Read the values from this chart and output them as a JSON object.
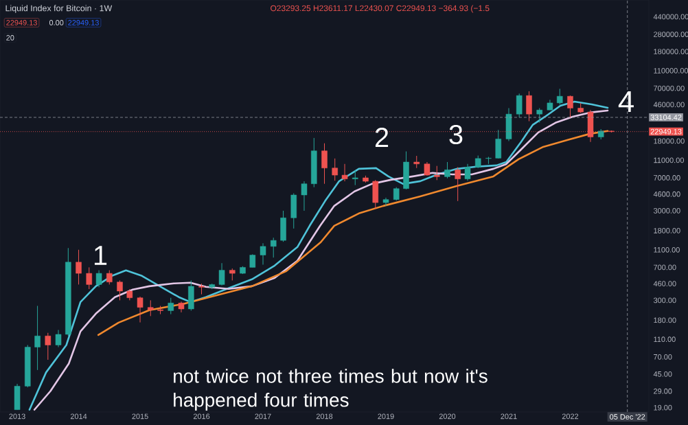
{
  "chart_data": {
    "type": "candlestick",
    "title": "Liquid Index for Bitcoin · 1W",
    "subtitle": "O23293.25 H23611.17 L22430.07 C22949.13 −364.93 (−1.5",
    "log": "y",
    "xlim": [
      2012.72,
      2023.28
    ],
    "ylim": [
      17,
      677000
    ],
    "xticks": [
      2013,
      2014,
      2015,
      2016,
      2017,
      2018,
      2019,
      2020,
      2021,
      2022
    ],
    "yticks": [
      {
        "value": 19,
        "label": "19.00"
      },
      {
        "value": 29,
        "label": "29.00"
      },
      {
        "value": 45,
        "label": "45.00"
      },
      {
        "value": 70,
        "label": "70.00"
      },
      {
        "value": 110,
        "label": "110.00"
      },
      {
        "value": 180,
        "label": "180.00"
      },
      {
        "value": 300,
        "label": "300.00"
      },
      {
        "value": 460,
        "label": "460.00"
      },
      {
        "value": 700,
        "label": "700.00"
      },
      {
        "value": 1100,
        "label": "1100.00"
      },
      {
        "value": 1800,
        "label": "1800.00"
      },
      {
        "value": 3000,
        "label": "3000.00"
      },
      {
        "value": 4600,
        "label": "4600.00"
      },
      {
        "value": 7000,
        "label": "7000.00"
      },
      {
        "value": 11000,
        "label": "11000.00"
      },
      {
        "value": 18000,
        "label": "18000.00"
      },
      {
        "value": 46000,
        "label": "46000.00"
      },
      {
        "value": 70000,
        "label": "70000.00"
      },
      {
        "value": 110000,
        "label": "110000.00"
      },
      {
        "value": 180000,
        "label": "180000.00"
      },
      {
        "value": 280000,
        "label": "280000.00"
      },
      {
        "value": 440000,
        "label": "440000.00"
      }
    ],
    "x": [
      2013.0,
      2013.17,
      2013.33,
      2013.5,
      2013.67,
      2013.83,
      2014.0,
      2014.17,
      2014.33,
      2014.5,
      2014.67,
      2014.83,
      2015.0,
      2015.17,
      2015.33,
      2015.5,
      2015.67,
      2015.83,
      2016.0,
      2016.17,
      2016.33,
      2016.5,
      2016.67,
      2016.83,
      2017.0,
      2017.17,
      2017.33,
      2017.5,
      2017.67,
      2017.83,
      2018.0,
      2018.17,
      2018.33,
      2018.5,
      2018.67,
      2018.83,
      2019.0,
      2019.17,
      2019.33,
      2019.5,
      2019.67,
      2019.83,
      2020.0,
      2020.17,
      2020.33,
      2020.5,
      2020.67,
      2020.83,
      2021.0,
      2021.17,
      2021.33,
      2021.5,
      2021.67,
      2021.83,
      2022.0,
      2022.17,
      2022.33,
      2022.5,
      2022.67
    ],
    "ohlc": [
      [
        18,
        35,
        18,
        33
      ],
      [
        33,
        95,
        32,
        90
      ],
      [
        90,
        260,
        50,
        120
      ],
      [
        120,
        130,
        65,
        95
      ],
      [
        95,
        140,
        90,
        125
      ],
      [
        125,
        1150,
        120,
        800
      ],
      [
        800,
        1100,
        450,
        600
      ],
      [
        600,
        700,
        400,
        450
      ],
      [
        450,
        650,
        420,
        600
      ],
      [
        600,
        650,
        450,
        480
      ],
      [
        480,
        500,
        300,
        380
      ],
      [
        380,
        400,
        300,
        320
      ],
      [
        320,
        330,
        170,
        250
      ],
      [
        250,
        300,
        200,
        235
      ],
      [
        235,
        260,
        210,
        230
      ],
      [
        230,
        320,
        210,
        280
      ],
      [
        280,
        290,
        220,
        240
      ],
      [
        240,
        500,
        230,
        430
      ],
      [
        430,
        460,
        350,
        420
      ],
      [
        420,
        460,
        400,
        450
      ],
      [
        450,
        780,
        440,
        650
      ],
      [
        650,
        680,
        500,
        600
      ],
      [
        600,
        720,
        590,
        700
      ],
      [
        700,
        980,
        700,
        960
      ],
      [
        960,
        1300,
        750,
        1200
      ],
      [
        1200,
        1500,
        900,
        1400
      ],
      [
        1400,
        3000,
        1350,
        2500
      ],
      [
        2500,
        4700,
        1900,
        4500
      ],
      [
        4500,
        6400,
        3000,
        6000
      ],
      [
        6000,
        19500,
        5500,
        14000
      ],
      [
        14000,
        17000,
        6000,
        9000
      ],
      [
        9000,
        11500,
        6500,
        7500
      ],
      [
        7500,
        10000,
        6400,
        6800
      ],
      [
        6800,
        8500,
        5800,
        7000
      ],
      [
        7000,
        7400,
        6200,
        6400
      ],
      [
        6400,
        6600,
        3150,
        3700
      ],
      [
        3700,
        4200,
        3400,
        4000
      ],
      [
        4000,
        5500,
        3900,
        5300
      ],
      [
        5300,
        13800,
        5200,
        10500
      ],
      [
        10500,
        12300,
        9000,
        10000
      ],
      [
        10000,
        10500,
        7400,
        7500
      ],
      [
        7500,
        9500,
        6600,
        7200
      ],
      [
        7200,
        10500,
        6900,
        8600
      ],
      [
        8600,
        9200,
        3850,
        6800
      ],
      [
        6800,
        10000,
        6500,
        9200
      ],
      [
        9200,
        12400,
        9000,
        11500
      ],
      [
        11500,
        12000,
        10000,
        11600
      ],
      [
        11600,
        24000,
        11500,
        19000
      ],
      [
        19000,
        42000,
        18000,
        36000
      ],
      [
        36000,
        61000,
        33000,
        58000
      ],
      [
        58000,
        64800,
        30000,
        36000
      ],
      [
        36000,
        42000,
        29000,
        40000
      ],
      [
        40000,
        52000,
        40000,
        48000
      ],
      [
        48000,
        69000,
        46000,
        57000
      ],
      [
        57000,
        58000,
        33000,
        42000
      ],
      [
        42000,
        48000,
        37000,
        38000
      ],
      [
        38000,
        40000,
        17600,
        20000
      ],
      [
        20000,
        24500,
        18800,
        23293
      ],
      [
        23293,
        23611,
        22430,
        22949
      ]
    ],
    "colors": [
      "#26a69a",
      "#26a69a",
      "#26a69a",
      "#ef5350",
      "#26a69a",
      "#26a69a",
      "#ef5350",
      "#ef5350",
      "#26a69a",
      "#ef5350",
      "#ef5350",
      "#ef5350",
      "#ef5350",
      "#ef5350",
      "#ef5350",
      "#26a69a",
      "#ef5350",
      "#26a69a",
      "#ef5350",
      "#26a69a",
      "#26a69a",
      "#ef5350",
      "#26a69a",
      "#26a69a",
      "#26a69a",
      "#26a69a",
      "#26a69a",
      "#26a69a",
      "#26a69a",
      "#26a69a",
      "#ef5350",
      "#ef5350",
      "#ef5350",
      "#26a69a",
      "#ef5350",
      "#ef5350",
      "#26a69a",
      "#26a69a",
      "#26a69a",
      "#ef5350",
      "#ef5350",
      "#ef5350",
      "#26a69a",
      "#ef5350",
      "#26a69a",
      "#26a69a",
      "#26a69a",
      "#26a69a",
      "#26a69a",
      "#26a69a",
      "#ef5350",
      "#26a69a",
      "#26a69a",
      "#26a69a",
      "#ef5350",
      "#ef5350",
      "#ef5350",
      "#26a69a",
      "#ef5350"
    ],
    "series": [
      {
        "type": "line",
        "color": "#4fc3d9",
        "x": [
          2013.2,
          2013.47,
          2013.8,
          2014.03,
          2014.28,
          2014.54,
          2014.77,
          2015.03,
          2015.32,
          2015.63,
          2015.82,
          2016.07,
          2016.44,
          2016.82,
          2017.19,
          2017.56,
          2017.76,
          2018.01,
          2018.24,
          2018.56,
          2018.84,
          2019.04,
          2019.28,
          2019.56,
          2019.84,
          2020.16,
          2020.47,
          2020.8,
          2020.96,
          2021.2,
          2021.39,
          2021.59,
          2021.84,
          2022.07,
          2022.35,
          2022.61
        ],
        "values": [
          18,
          47,
          95,
          287,
          431,
          562,
          648,
          562,
          431,
          326,
          287,
          326,
          409,
          515,
          733,
          1180,
          2040,
          3850,
          6420,
          8820,
          8970,
          7260,
          5980,
          6420,
          7650,
          8820,
          9310,
          9630,
          10500,
          17600,
          27300,
          33700,
          44700,
          49700,
          46300,
          42400
        ]
      },
      {
        "type": "line",
        "color": "#e3c6e6",
        "x": [
          2013.28,
          2013.54,
          2013.84,
          2014.03,
          2014.28,
          2014.59,
          2014.88,
          2015.15,
          2015.55,
          2015.82,
          2016.07,
          2016.44,
          2016.82,
          2017.19,
          2017.56,
          2017.93,
          2018.16,
          2018.49,
          2018.77,
          2019.08,
          2019.44,
          2019.76,
          2020.08,
          2020.4,
          2020.75,
          2020.96,
          2021.2,
          2021.48,
          2021.76,
          2022.04,
          2022.32,
          2022.61
        ],
        "values": [
          18,
          29,
          59,
          135,
          213,
          326,
          395,
          431,
          463,
          472,
          424,
          402,
          431,
          533,
          829,
          2040,
          3400,
          4930,
          5980,
          6650,
          7260,
          7940,
          7650,
          7650,
          8820,
          9970,
          14500,
          22500,
          28800,
          33700,
          37500,
          39500
        ]
      },
      {
        "type": "line",
        "color": "#f0892e",
        "x": [
          2014.32,
          2014.65,
          2015.15,
          2015.7,
          2016.26,
          2016.82,
          2017.38,
          2017.94,
          2018.16,
          2018.56,
          2018.96,
          2019.56,
          2020.16,
          2020.75,
          2021.16,
          2021.56,
          2021.95,
          2022.32,
          2022.61
        ],
        "values": [
          123,
          169,
          233,
          273,
          343,
          431,
          636,
          1336,
          2040,
          2800,
          3400,
          4350,
          5680,
          7260,
          11300,
          15500,
          18500,
          21700,
          23300
        ]
      }
    ],
    "ref_lines": [
      {
        "axis": "y",
        "value": 33104.42,
        "label": "33104.42",
        "color": "#9598a1",
        "line_style": "dashed"
      },
      {
        "axis": "y",
        "value": 22949.13,
        "label": "22949.13",
        "color": "#ef5350",
        "line_style": "dotted"
      },
      {
        "axis": "x",
        "value": 2022.93,
        "label": "05 Dec '22",
        "color": "#9598a1",
        "line_style": "dashed"
      }
    ],
    "annotations": [
      "22949.13",
      "0.00",
      "22949.13",
      "20",
      "1",
      "2",
      "3",
      "4",
      "not twice not three times but now it's happened four times"
    ]
  }
}
